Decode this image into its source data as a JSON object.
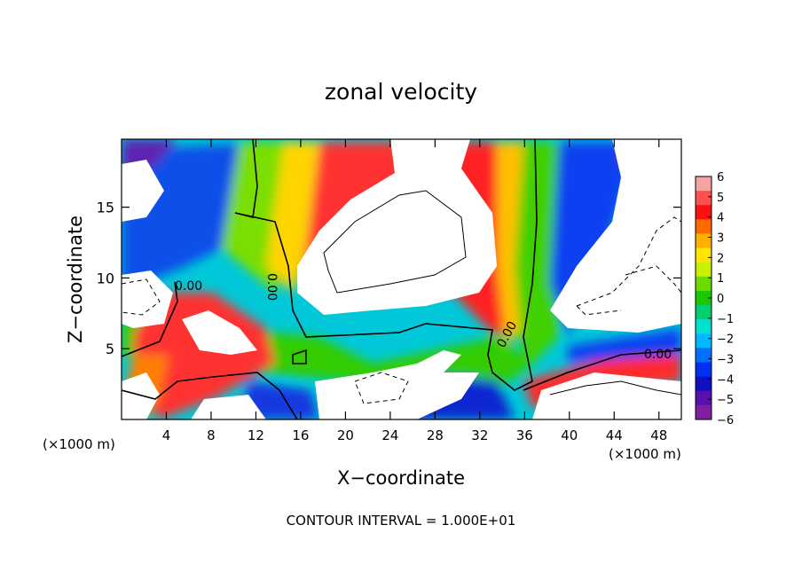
{
  "chart_data": {
    "type": "heatmap",
    "title": "zonal velocity",
    "xlabel": "X−coordinate",
    "ylabel": "Z−coordinate",
    "x_unit": "(×1000 m)",
    "y_unit": "(×1000 m)",
    "xlim": [
      0,
      50
    ],
    "ylim": [
      0,
      19.8
    ],
    "x_ticks": [
      4,
      8,
      12,
      16,
      20,
      24,
      28,
      32,
      36,
      40,
      44,
      48
    ],
    "y_ticks": [
      5,
      10,
      15
    ],
    "colorbar": {
      "min": -6,
      "max": 6,
      "ticks": [
        "6",
        "5",
        "4",
        "3",
        "2",
        "1",
        "0",
        "−1",
        "−2",
        "−3",
        "−4",
        "−5",
        "−6"
      ],
      "colors": [
        "#f4a3a3",
        "#ff5050",
        "#ff1010",
        "#ff6a00",
        "#ffb000",
        "#ffe600",
        "#c8f000",
        "#6cdc00",
        "#1ec800",
        "#00d070",
        "#00e0d0",
        "#00b8ff",
        "#0070ff",
        "#0030f0",
        "#1010c0",
        "#5a10b0",
        "#8020a0"
      ]
    },
    "zero_contour_label": "0.00",
    "footer": "CONTOUR INTERVAL = 1.000E+01"
  }
}
